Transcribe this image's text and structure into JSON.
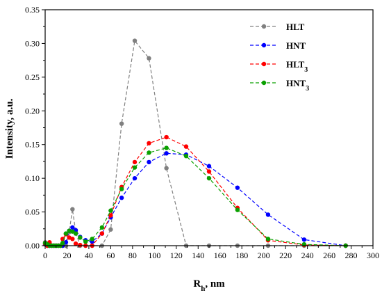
{
  "chart_data": {
    "type": "line",
    "xlabel": "R",
    "xlabel_sub": "h",
    "xlabel_unit": ", nm",
    "ylabel": "Intensity, a.u.",
    "xlim": [
      0,
      300
    ],
    "ylim": [
      0,
      0.35
    ],
    "x_ticks": [
      "0",
      "20",
      "40",
      "60",
      "80",
      "100",
      "120",
      "140",
      "160",
      "180",
      "200",
      "220",
      "240",
      "260",
      "280",
      "300"
    ],
    "y_ticks": [
      "0.00",
      "0.05",
      "0.10",
      "0.15",
      "0.20",
      "0.25",
      "0.30",
      "0.35"
    ],
    "grid": false,
    "legend_position": "top-right",
    "series": [
      {
        "name": "HLT",
        "sub": "",
        "color": "#808080",
        "x": [
          0,
          2,
          4,
          6,
          8,
          10,
          12,
          14,
          16,
          19,
          22,
          25,
          28,
          32,
          37,
          43,
          52,
          60,
          70,
          82,
          95,
          111,
          129,
          150,
          176,
          204,
          237,
          275
        ],
        "y": [
          0.005,
          0.0,
          0.0,
          0.0,
          0.0,
          0.0,
          0.0,
          0.0,
          0.0,
          0.0,
          0.02,
          0.054,
          0.02,
          0.0,
          0.0,
          0.0,
          0.0,
          0.024,
          0.181,
          0.304,
          0.278,
          0.115,
          0.0,
          0.0,
          0.0,
          0.0,
          0.0,
          0.0
        ]
      },
      {
        "name": "HNT",
        "sub": "",
        "color": "#0000ff",
        "x": [
          0,
          2,
          4,
          6,
          8,
          10,
          12,
          14,
          16,
          19,
          22,
          25,
          28,
          32,
          37,
          43,
          52,
          60,
          70,
          82,
          95,
          111,
          129,
          150,
          176,
          204,
          237,
          275
        ],
        "y": [
          0.002,
          0.0,
          0.0,
          0.0,
          0.0,
          0.0,
          0.0,
          0.0,
          0.0,
          0.005,
          0.022,
          0.027,
          0.023,
          0.013,
          0.008,
          0.006,
          0.018,
          0.042,
          0.071,
          0.1,
          0.124,
          0.137,
          0.135,
          0.118,
          0.086,
          0.046,
          0.009,
          0.0
        ]
      },
      {
        "name": "HLT",
        "sub": "3",
        "color": "#ff0000",
        "x": [
          0,
          2,
          4,
          6,
          8,
          10,
          12,
          14,
          16,
          19,
          22,
          25,
          28,
          32,
          37,
          43,
          52,
          60,
          70,
          82,
          95,
          111,
          129,
          150,
          176,
          204,
          237,
          275
        ],
        "y": [
          0.003,
          0.0,
          0.005,
          0.0,
          0.0,
          0.0,
          0.0,
          0.0,
          0.01,
          0.017,
          0.012,
          0.01,
          0.003,
          0.001,
          0.0,
          0.0,
          0.018,
          0.045,
          0.087,
          0.124,
          0.152,
          0.161,
          0.147,
          0.11,
          0.056,
          0.008,
          0.001,
          0.0
        ]
      },
      {
        "name": "HNT",
        "sub": "3",
        "color": "#0aa000",
        "x": [
          0,
          2,
          4,
          6,
          8,
          10,
          12,
          14,
          16,
          19,
          22,
          25,
          28,
          32,
          37,
          43,
          52,
          60,
          70,
          82,
          95,
          111,
          129,
          150,
          176,
          204,
          237,
          275
        ],
        "y": [
          0.004,
          0.002,
          0.0,
          0.0,
          0.0,
          0.0,
          0.0,
          0.0,
          0.004,
          0.018,
          0.022,
          0.021,
          0.018,
          0.012,
          0.006,
          0.01,
          0.027,
          0.052,
          0.084,
          0.116,
          0.138,
          0.145,
          0.133,
          0.1,
          0.053,
          0.01,
          0.002,
          0.0
        ]
      }
    ]
  }
}
